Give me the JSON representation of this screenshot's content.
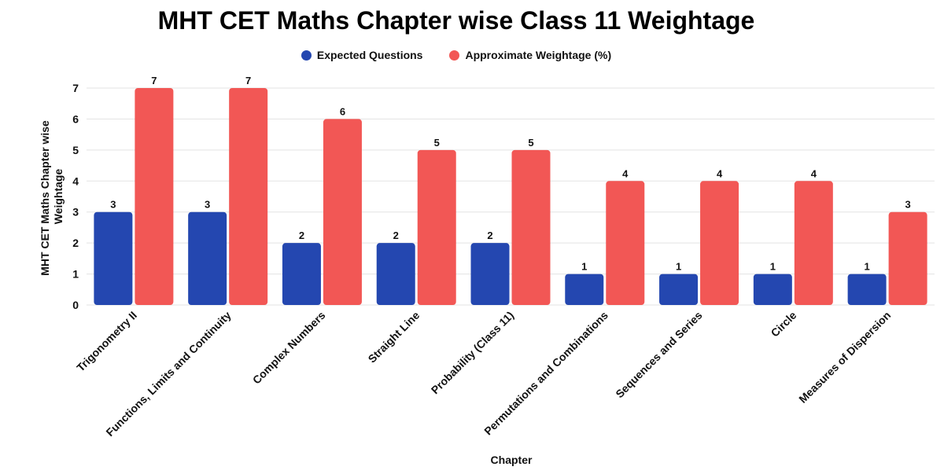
{
  "chart_data": {
    "type": "bar",
    "title": "MHT CET Maths Chapter wise Class 11 Weightage",
    "xlabel": "Chapter",
    "ylabel_lines": [
      "MHT CET Maths Chapter wise",
      "Weightage"
    ],
    "ylim": [
      0,
      7
    ],
    "yticks": [
      "0",
      "1",
      "2",
      "3",
      "4",
      "5",
      "6",
      "7"
    ],
    "grid": true,
    "legend_position": "top-center",
    "categories": [
      "Trigonometry II",
      "Functions, Limits and Continuity",
      "Complex Numbers",
      "Straight Line",
      "Probability (Class 11)",
      "Permutations and Combinations",
      "Sequences and Series",
      "Circle",
      "Measures of Dispersion"
    ],
    "series": [
      {
        "name": "Expected Questions",
        "color": "#2447b0",
        "values": [
          3,
          3,
          2,
          2,
          2,
          1,
          1,
          1,
          1
        ]
      },
      {
        "name": "Approximate Weightage (%)",
        "color": "#f25755",
        "values": [
          7,
          7,
          6,
          5,
          5,
          4,
          4,
          4,
          3
        ]
      }
    ]
  }
}
